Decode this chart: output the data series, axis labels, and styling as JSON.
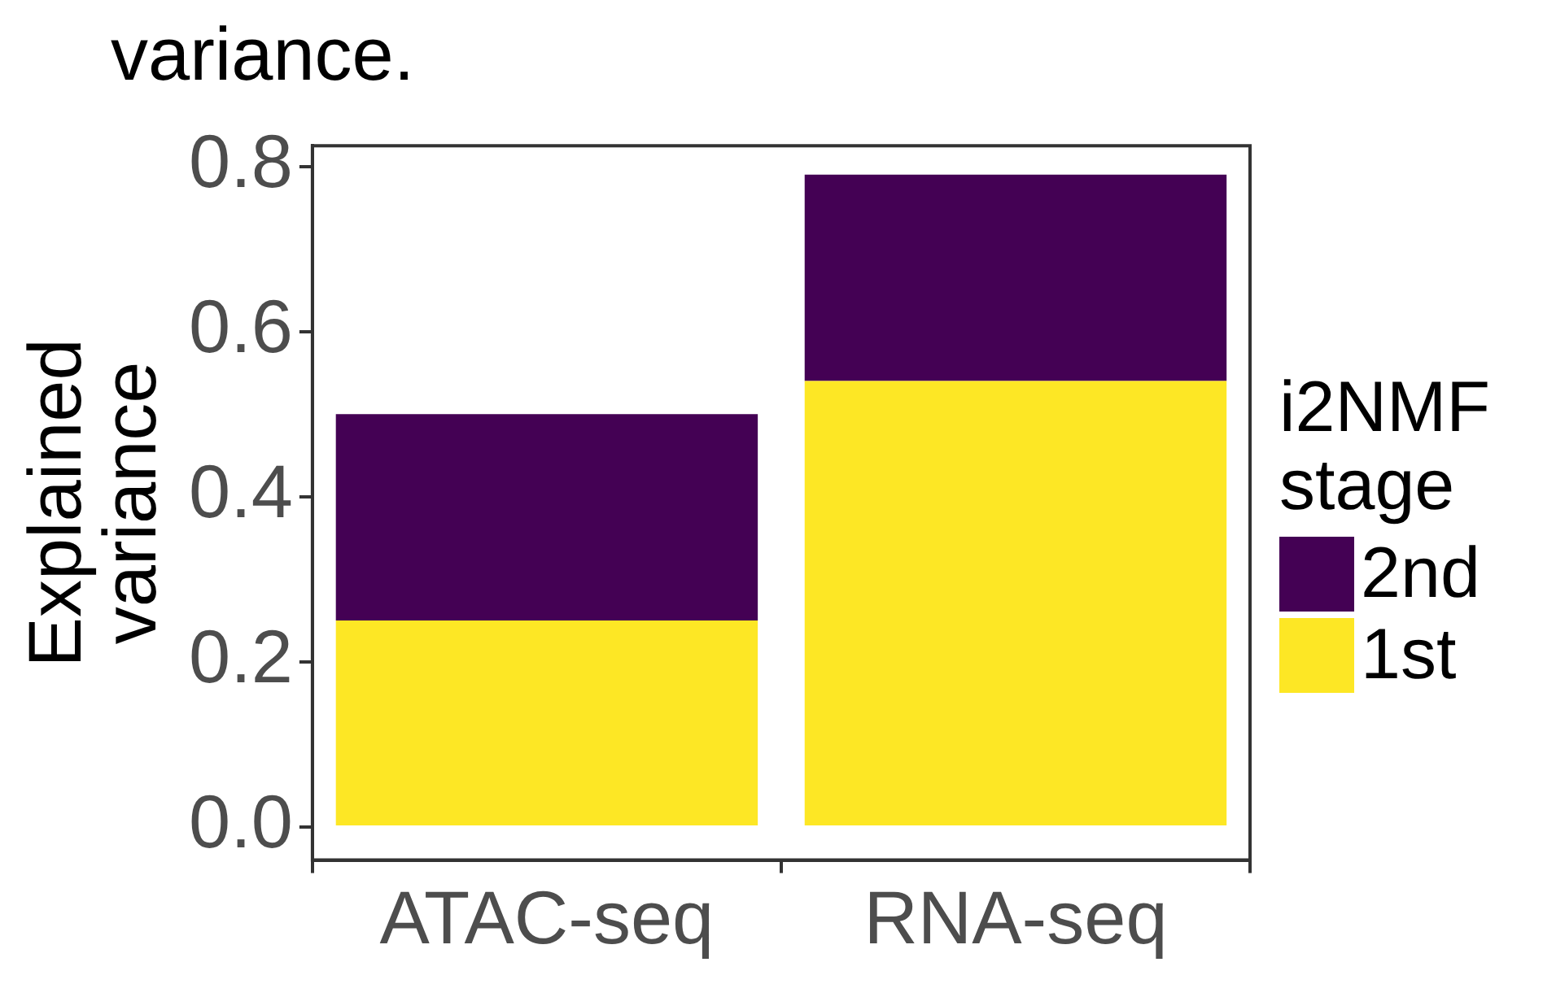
{
  "chart_data": {
    "type": "bar",
    "title": "variance.",
    "ylabel": "Explained variance",
    "legend_title": "i2NMF stage",
    "categories": [
      "ATAC-seq",
      "RNA-seq"
    ],
    "stacked": true,
    "series": [
      {
        "name": "1st",
        "color": "#fde725",
        "values": [
          0.25,
          0.54
        ]
      },
      {
        "name": "2nd",
        "color": "#440154",
        "values": [
          0.25,
          0.25
        ]
      }
    ],
    "ylim": [
      -0.04,
      0.825
    ],
    "yticks": [
      {
        "value": 0,
        "label": "0.0"
      },
      0.2,
      0.4,
      0.6,
      0.8
    ],
    "grid": false,
    "legend": "right"
  }
}
